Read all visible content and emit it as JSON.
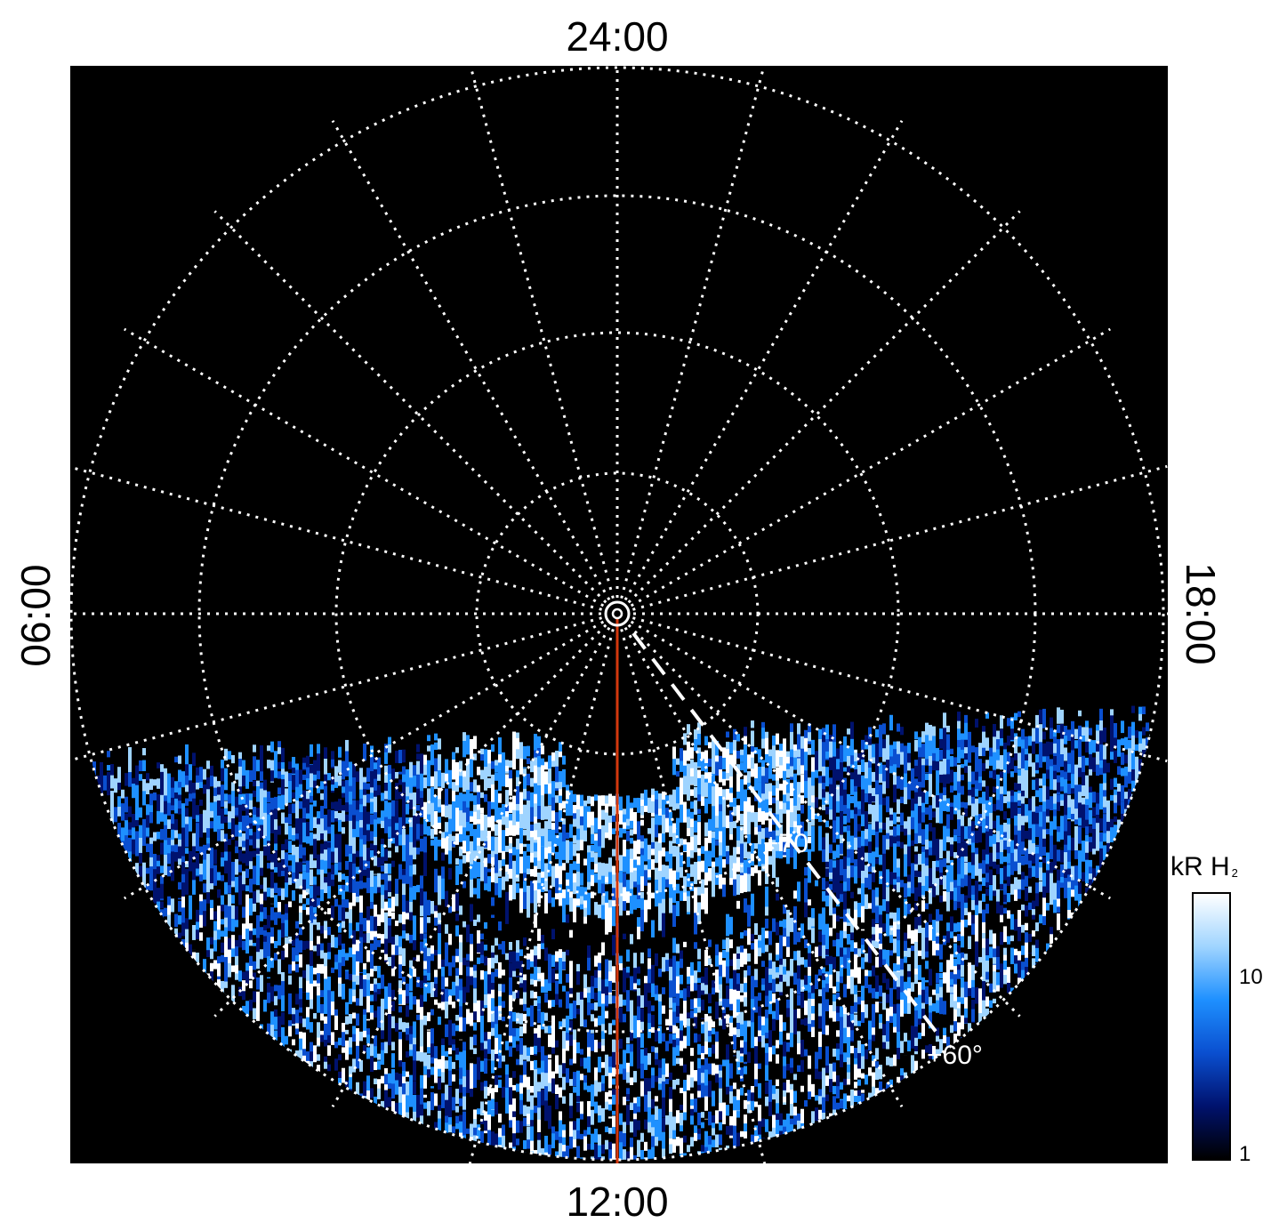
{
  "chart_data": {
    "type": "heatmap",
    "projection": "polar",
    "local_time_labels": {
      "top": "24:00",
      "bottom": "12:00",
      "left": "06:00",
      "right": "18:00"
    },
    "latitude_labels": [
      "+70",
      "+60°"
    ],
    "colorbar": {
      "title": "kR H",
      "title_subscript": "2",
      "scale": "log",
      "range": [
        1,
        25
      ],
      "tick_labels": [
        "1",
        "10"
      ],
      "colors": [
        "#000000",
        "#00126e",
        "#0a4fd0",
        "#1e90ff",
        "#9fd4ff",
        "#ffffff"
      ]
    },
    "grid": true,
    "background_color": "#000000",
    "grid_color": "#ffffff",
    "meridian_line": {
      "local_time": "12:00",
      "color": "#d4380d"
    }
  }
}
